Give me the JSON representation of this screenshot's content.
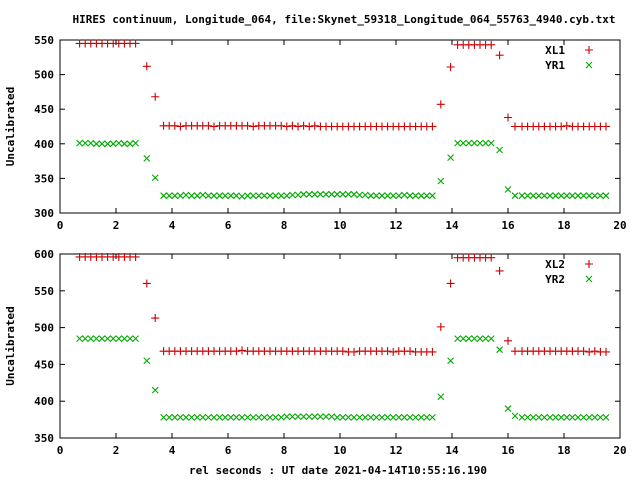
{
  "chart_data": {
    "title": "HIRES continuum, Longitude_064, file:Skynet_59318_Longitude_064_55763_4940.cyb.txt",
    "xlabel": "rel seconds : UT date 2021-04-14T10:55:16.190",
    "colors": {
      "series1": "#cc0000",
      "series2": "#00aa00"
    },
    "legend_position": "top-right",
    "panels": [
      {
        "type": "scatter",
        "ylabel": "Uncalibrated",
        "xlim": [
          0,
          20
        ],
        "ylim": [
          300,
          550
        ],
        "xticks": [
          0,
          2,
          4,
          6,
          8,
          10,
          12,
          14,
          16,
          18,
          20
        ],
        "yticks": [
          300,
          350,
          400,
          450,
          500,
          550
        ],
        "x": [
          0.7,
          0.9,
          1.1,
          1.3,
          1.5,
          1.7,
          1.9,
          2.1,
          2.3,
          2.5,
          2.7,
          3.1,
          3.4,
          3.7,
          3.9,
          4.1,
          4.3,
          4.5,
          4.7,
          4.9,
          5.1,
          5.3,
          5.5,
          5.7,
          5.9,
          6.1,
          6.3,
          6.5,
          6.7,
          6.9,
          7.1,
          7.3,
          7.5,
          7.7,
          7.9,
          8.1,
          8.3,
          8.5,
          8.7,
          8.9,
          9.1,
          9.3,
          9.5,
          9.7,
          9.9,
          10.1,
          10.3,
          10.5,
          10.7,
          10.9,
          11.1,
          11.3,
          11.5,
          11.7,
          11.9,
          12.1,
          12.3,
          12.5,
          12.7,
          12.9,
          13.1,
          13.3,
          13.6,
          13.95,
          14.2,
          14.4,
          14.6,
          14.8,
          15.0,
          15.2,
          15.4,
          15.7,
          16.0,
          16.25,
          16.5,
          16.7,
          16.9,
          17.1,
          17.3,
          17.5,
          17.7,
          17.9,
          18.1,
          18.3,
          18.5,
          18.7,
          18.9,
          19.1,
          19.3,
          19.5
        ],
        "series": [
          {
            "name": "XL1",
            "marker": "plus",
            "values": [
              545,
              545,
              545,
              545,
              545,
              545,
              545,
              545,
              545,
              545,
              545,
              512,
              468,
              426,
              426,
              426,
              425,
              426,
              426,
              426,
              426,
              426,
              425,
              426,
              426,
              426,
              426,
              426,
              426,
              425,
              426,
              426,
              426,
              426,
              426,
              425,
              426,
              425,
              426,
              425,
              426,
              425,
              425,
              425,
              425,
              425,
              425,
              425,
              425,
              425,
              425,
              425,
              425,
              425,
              425,
              425,
              425,
              425,
              425,
              425,
              425,
              425,
              457,
              511,
              543,
              543,
              543,
              543,
              543,
              543,
              543,
              528,
              438,
              425,
              425,
              425,
              425,
              425,
              425,
              425,
              425,
              425,
              426,
              425,
              425,
              425,
              425,
              425,
              425,
              425
            ]
          },
          {
            "name": "YR1",
            "marker": "cross",
            "values": [
              401,
              401,
              401,
              400,
              400,
              400,
              400,
              401,
              400,
              400,
              401,
              379,
              351,
              325,
              325,
              325,
              325,
              326,
              325,
              325,
              326,
              325,
              325,
              325,
              325,
              325,
              325,
              324,
              325,
              325,
              325,
              325,
              325,
              325,
              325,
              325,
              326,
              326,
              327,
              327,
              327,
              327,
              327,
              327,
              327,
              327,
              327,
              327,
              326,
              326,
              325,
              325,
              325,
              325,
              325,
              325,
              326,
              325,
              325,
              325,
              325,
              325,
              346,
              380,
              401,
              401,
              401,
              401,
              401,
              401,
              401,
              391,
              334,
              325,
              325,
              325,
              325,
              325,
              325,
              325,
              325,
              325,
              325,
              325,
              325,
              325,
              325,
              325,
              325,
              325
            ]
          }
        ]
      },
      {
        "type": "scatter",
        "ylabel": "Uncalibrated",
        "xlim": [
          0,
          20
        ],
        "ylim": [
          350,
          600
        ],
        "xticks": [
          0,
          2,
          4,
          6,
          8,
          10,
          12,
          14,
          16,
          18,
          20
        ],
        "yticks": [
          350,
          400,
          450,
          500,
          550,
          600
        ],
        "x": [
          0.7,
          0.9,
          1.1,
          1.3,
          1.5,
          1.7,
          1.9,
          2.1,
          2.3,
          2.5,
          2.7,
          3.1,
          3.4,
          3.7,
          3.9,
          4.1,
          4.3,
          4.5,
          4.7,
          4.9,
          5.1,
          5.3,
          5.5,
          5.7,
          5.9,
          6.1,
          6.3,
          6.5,
          6.7,
          6.9,
          7.1,
          7.3,
          7.5,
          7.7,
          7.9,
          8.1,
          8.3,
          8.5,
          8.7,
          8.9,
          9.1,
          9.3,
          9.5,
          9.7,
          9.9,
          10.1,
          10.3,
          10.5,
          10.7,
          10.9,
          11.1,
          11.3,
          11.5,
          11.7,
          11.9,
          12.1,
          12.3,
          12.5,
          12.7,
          12.9,
          13.1,
          13.3,
          13.6,
          13.95,
          14.2,
          14.4,
          14.6,
          14.8,
          15.0,
          15.2,
          15.4,
          15.7,
          16.0,
          16.25,
          16.5,
          16.7,
          16.9,
          17.1,
          17.3,
          17.5,
          17.7,
          17.9,
          18.1,
          18.3,
          18.5,
          18.7,
          18.9,
          19.1,
          19.3,
          19.5
        ],
        "series": [
          {
            "name": "XL2",
            "marker": "plus",
            "values": [
              596,
              596,
              596,
              596,
              596,
              596,
              596,
              596,
              596,
              596,
              596,
              560,
              513,
              468,
              468,
              468,
              468,
              468,
              468,
              468,
              468,
              468,
              468,
              468,
              468,
              468,
              468,
              469,
              468,
              468,
              468,
              468,
              468,
              468,
              468,
              468,
              468,
              468,
              468,
              468,
              468,
              468,
              468,
              468,
              468,
              468,
              467,
              467,
              468,
              468,
              468,
              468,
              468,
              468,
              467,
              468,
              468,
              468,
              467,
              467,
              467,
              467,
              501,
              560,
              595,
              595,
              595,
              595,
              595,
              595,
              595,
              577,
              482,
              468,
              468,
              468,
              468,
              468,
              468,
              468,
              468,
              468,
              468,
              468,
              468,
              468,
              467,
              468,
              467,
              467
            ]
          },
          {
            "name": "YR2",
            "marker": "cross",
            "values": [
              485,
              485,
              485,
              485,
              485,
              485,
              485,
              485,
              485,
              485,
              485,
              455,
              415,
              378,
              378,
              378,
              378,
              378,
              378,
              378,
              378,
              378,
              378,
              378,
              378,
              378,
              378,
              378,
              378,
              378,
              378,
              378,
              378,
              378,
              378,
              379,
              379,
              379,
              379,
              379,
              379,
              379,
              379,
              379,
              378,
              378,
              378,
              378,
              378,
              378,
              378,
              378,
              378,
              378,
              378,
              378,
              378,
              378,
              378,
              378,
              378,
              378,
              406,
              455,
              485,
              485,
              485,
              485,
              485,
              485,
              485,
              470,
              390,
              380,
              378,
              378,
              378,
              378,
              378,
              378,
              378,
              378,
              378,
              378,
              378,
              378,
              378,
              378,
              378,
              378
            ]
          }
        ]
      }
    ]
  }
}
